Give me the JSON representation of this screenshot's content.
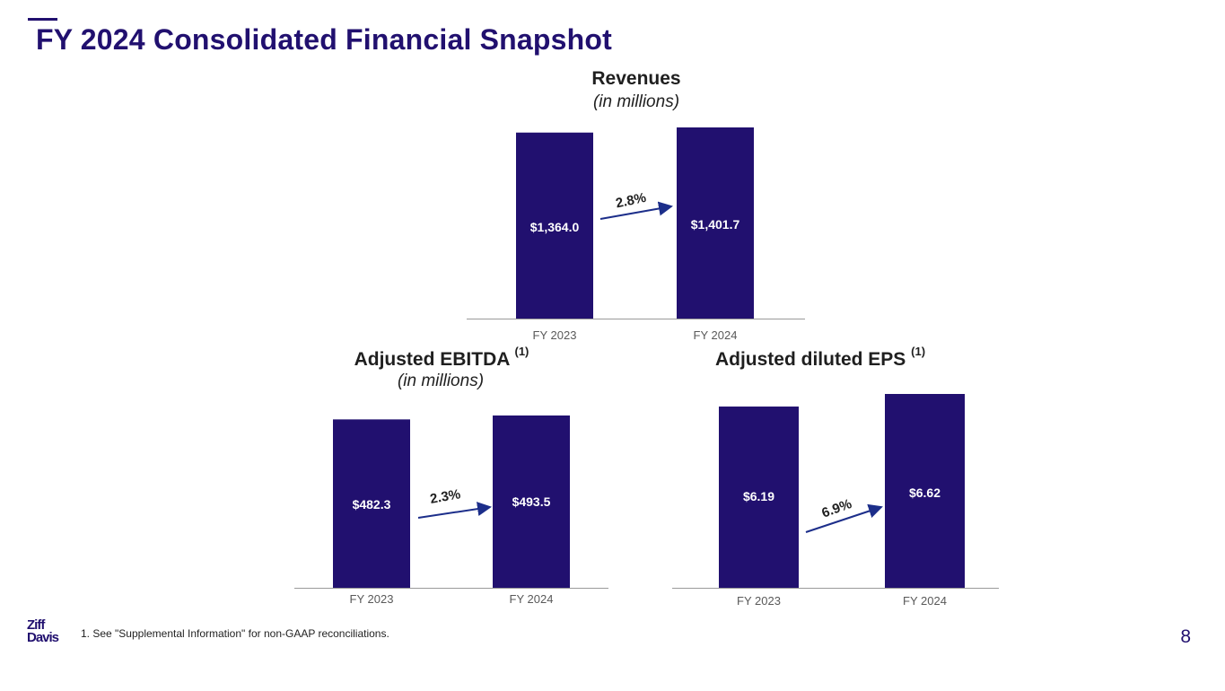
{
  "page": {
    "title": "FY 2024 Consolidated Financial Snapshot",
    "footnote": "1.  See \"Supplemental Information\" for non-GAAP reconciliations.",
    "page_number": "8",
    "logo_line1": "Ziff",
    "logo_line2": "Davis"
  },
  "colors": {
    "bar": "#21106f",
    "arrow": "#1c2e8a",
    "axis": "#9a9a9a",
    "tick": "#595959",
    "label": "#ffffff"
  },
  "chart_data": [
    {
      "id": "revenues",
      "type": "bar",
      "title": "Revenues",
      "title_superscript": "",
      "subtitle": "(in millions)",
      "categories": [
        "FY 2023",
        "FY 2024"
      ],
      "values": [
        1364.0,
        1401.7
      ],
      "value_labels": [
        "$1,364.0",
        "$1,401.7"
      ],
      "growth_label": "2.8%",
      "ylim": [
        0,
        1401.7
      ]
    },
    {
      "id": "adjusted-ebitda",
      "type": "bar",
      "title": "Adjusted EBITDA",
      "title_superscript": "(1)",
      "subtitle": "(in millions)",
      "categories": [
        "FY 2023",
        "FY 2024"
      ],
      "values": [
        482.3,
        493.5
      ],
      "value_labels": [
        "$482.3",
        "$493.5"
      ],
      "growth_label": "2.3%",
      "ylim": [
        0,
        493.5
      ]
    },
    {
      "id": "adjusted-diluted-eps",
      "type": "bar",
      "title": "Adjusted diluted EPS",
      "title_superscript": "(1)",
      "subtitle": "",
      "categories": [
        "FY 2023",
        "FY 2024"
      ],
      "values": [
        6.19,
        6.62
      ],
      "value_labels": [
        "$6.19",
        "$6.62"
      ],
      "growth_label": "6.9%",
      "ylim": [
        0,
        6.62
      ]
    }
  ]
}
